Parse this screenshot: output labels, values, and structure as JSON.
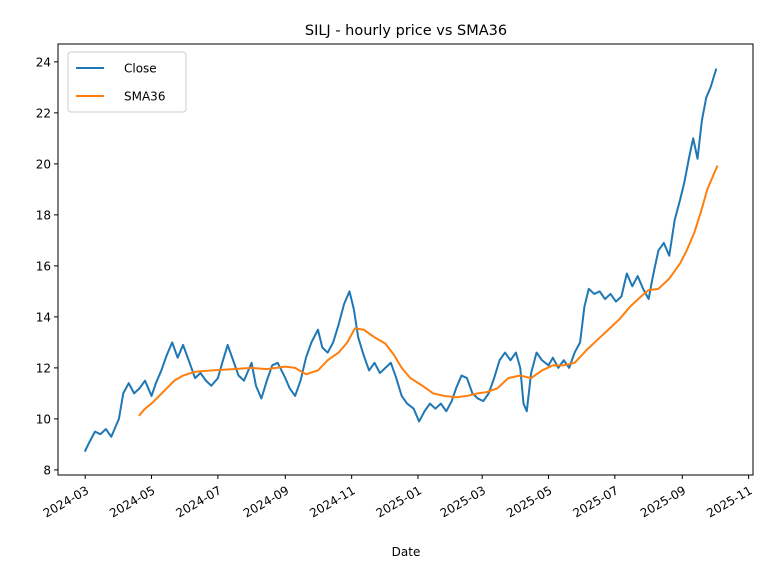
{
  "chart_data": {
    "type": "line",
    "title": "SILJ - hourly price vs SMA36",
    "xlabel": "Date",
    "ylabel": "",
    "xlim": [
      "2024-02-05",
      "2025-11-05"
    ],
    "ylim": [
      7.8,
      24.7
    ],
    "grid": false,
    "legend_position": "upper left",
    "x_ticks": [
      "2024-03",
      "2024-05",
      "2024-07",
      "2024-09",
      "2024-11",
      "2025-01",
      "2025-03",
      "2025-05",
      "2025-07",
      "2025-09",
      "2025-11"
    ],
    "y_ticks": [
      8,
      10,
      12,
      14,
      16,
      18,
      20,
      22,
      24
    ],
    "series": [
      {
        "name": "Close",
        "color": "#1f77b4",
        "points": [
          [
            "2024-03-01",
            8.75
          ],
          [
            "2024-03-05",
            9.1
          ],
          [
            "2024-03-10",
            9.5
          ],
          [
            "2024-03-15",
            9.4
          ],
          [
            "2024-03-20",
            9.6
          ],
          [
            "2024-03-25",
            9.3
          ],
          [
            "2024-04-01",
            10.0
          ],
          [
            "2024-04-05",
            11.0
          ],
          [
            "2024-04-10",
            11.4
          ],
          [
            "2024-04-15",
            11.0
          ],
          [
            "2024-04-20",
            11.2
          ],
          [
            "2024-04-25",
            11.5
          ],
          [
            "2024-05-01",
            10.9
          ],
          [
            "2024-05-05",
            11.4
          ],
          [
            "2024-05-10",
            11.9
          ],
          [
            "2024-05-15",
            12.5
          ],
          [
            "2024-05-20",
            13.0
          ],
          [
            "2024-05-25",
            12.4
          ],
          [
            "2024-05-30",
            12.9
          ],
          [
            "2024-06-05",
            12.2
          ],
          [
            "2024-06-10",
            11.6
          ],
          [
            "2024-06-15",
            11.8
          ],
          [
            "2024-06-20",
            11.5
          ],
          [
            "2024-06-25",
            11.3
          ],
          [
            "2024-07-01",
            11.6
          ],
          [
            "2024-07-05",
            12.2
          ],
          [
            "2024-07-10",
            12.9
          ],
          [
            "2024-07-15",
            12.3
          ],
          [
            "2024-07-20",
            11.7
          ],
          [
            "2024-07-25",
            11.5
          ],
          [
            "2024-08-01",
            12.2
          ],
          [
            "2024-08-05",
            11.3
          ],
          [
            "2024-08-10",
            10.8
          ],
          [
            "2024-08-15",
            11.5
          ],
          [
            "2024-08-20",
            12.1
          ],
          [
            "2024-08-25",
            12.2
          ],
          [
            "2024-09-01",
            11.6
          ],
          [
            "2024-09-05",
            11.2
          ],
          [
            "2024-09-10",
            10.9
          ],
          [
            "2024-09-15",
            11.5
          ],
          [
            "2024-09-20",
            12.4
          ],
          [
            "2024-09-25",
            13.0
          ],
          [
            "2024-10-01",
            13.5
          ],
          [
            "2024-10-05",
            12.8
          ],
          [
            "2024-10-10",
            12.6
          ],
          [
            "2024-10-15",
            13.0
          ],
          [
            "2024-10-20",
            13.7
          ],
          [
            "2024-10-25",
            14.5
          ],
          [
            "2024-10-30",
            15.0
          ],
          [
            "2024-11-03",
            14.3
          ],
          [
            "2024-11-07",
            13.2
          ],
          [
            "2024-11-12",
            12.5
          ],
          [
            "2024-11-17",
            11.9
          ],
          [
            "2024-11-22",
            12.2
          ],
          [
            "2024-11-27",
            11.8
          ],
          [
            "2024-12-02",
            12.0
          ],
          [
            "2024-12-07",
            12.2
          ],
          [
            "2024-12-12",
            11.6
          ],
          [
            "2024-12-17",
            10.9
          ],
          [
            "2024-12-22",
            10.6
          ],
          [
            "2024-12-28",
            10.4
          ],
          [
            "2025-01-02",
            9.9
          ],
          [
            "2025-01-07",
            10.3
          ],
          [
            "2025-01-12",
            10.6
          ],
          [
            "2025-01-17",
            10.4
          ],
          [
            "2025-01-22",
            10.6
          ],
          [
            "2025-01-27",
            10.3
          ],
          [
            "2025-02-01",
            10.7
          ],
          [
            "2025-02-05",
            11.2
          ],
          [
            "2025-02-10",
            11.7
          ],
          [
            "2025-02-15",
            11.6
          ],
          [
            "2025-02-20",
            11.0
          ],
          [
            "2025-02-25",
            10.8
          ],
          [
            "2025-03-02",
            10.7
          ],
          [
            "2025-03-07",
            11.0
          ],
          [
            "2025-03-12",
            11.6
          ],
          [
            "2025-03-17",
            12.3
          ],
          [
            "2025-03-22",
            12.6
          ],
          [
            "2025-03-27",
            12.3
          ],
          [
            "2025-04-01",
            12.6
          ],
          [
            "2025-04-05",
            12.0
          ],
          [
            "2025-04-08",
            10.6
          ],
          [
            "2025-04-11",
            10.3
          ],
          [
            "2025-04-15",
            11.8
          ],
          [
            "2025-04-20",
            12.6
          ],
          [
            "2025-04-25",
            12.3
          ],
          [
            "2025-05-01",
            12.1
          ],
          [
            "2025-05-05",
            12.4
          ],
          [
            "2025-05-10",
            12.0
          ],
          [
            "2025-05-15",
            12.3
          ],
          [
            "2025-05-20",
            12.0
          ],
          [
            "2025-05-25",
            12.6
          ],
          [
            "2025-05-30",
            13.0
          ],
          [
            "2025-06-03",
            14.4
          ],
          [
            "2025-06-07",
            15.1
          ],
          [
            "2025-06-12",
            14.9
          ],
          [
            "2025-06-17",
            15.0
          ],
          [
            "2025-06-22",
            14.7
          ],
          [
            "2025-06-27",
            14.9
          ],
          [
            "2025-07-02",
            14.6
          ],
          [
            "2025-07-07",
            14.8
          ],
          [
            "2025-07-12",
            15.7
          ],
          [
            "2025-07-17",
            15.2
          ],
          [
            "2025-07-22",
            15.6
          ],
          [
            "2025-07-27",
            15.1
          ],
          [
            "2025-08-01",
            14.7
          ],
          [
            "2025-08-05",
            15.6
          ],
          [
            "2025-08-10",
            16.6
          ],
          [
            "2025-08-15",
            16.9
          ],
          [
            "2025-08-20",
            16.4
          ],
          [
            "2025-08-25",
            17.8
          ],
          [
            "2025-08-30",
            18.6
          ],
          [
            "2025-09-03",
            19.3
          ],
          [
            "2025-09-07",
            20.2
          ],
          [
            "2025-09-11",
            21.0
          ],
          [
            "2025-09-15",
            20.2
          ],
          [
            "2025-09-19",
            21.7
          ],
          [
            "2025-09-23",
            22.6
          ],
          [
            "2025-09-27",
            23.0
          ],
          [
            "2025-10-02",
            23.7
          ]
        ]
      },
      {
        "name": "SMA36",
        "color": "#ff7f0e",
        "points": [
          [
            "2024-04-20",
            10.15
          ],
          [
            "2024-04-25",
            10.4
          ],
          [
            "2024-05-01",
            10.6
          ],
          [
            "2024-05-08",
            10.9
          ],
          [
            "2024-05-15",
            11.2
          ],
          [
            "2024-05-22",
            11.5
          ],
          [
            "2024-05-30",
            11.7
          ],
          [
            "2024-06-10",
            11.85
          ],
          [
            "2024-06-25",
            11.9
          ],
          [
            "2024-07-15",
            11.95
          ],
          [
            "2024-08-01",
            12.0
          ],
          [
            "2024-08-15",
            11.95
          ],
          [
            "2024-09-01",
            12.05
          ],
          [
            "2024-09-10",
            12.0
          ],
          [
            "2024-09-20",
            11.75
          ],
          [
            "2024-10-01",
            11.9
          ],
          [
            "2024-10-10",
            12.3
          ],
          [
            "2024-10-20",
            12.6
          ],
          [
            "2024-10-28",
            13.0
          ],
          [
            "2024-11-04",
            13.55
          ],
          [
            "2024-11-12",
            13.5
          ],
          [
            "2024-11-22",
            13.2
          ],
          [
            "2024-12-02",
            12.95
          ],
          [
            "2024-12-10",
            12.5
          ],
          [
            "2024-12-17",
            12.0
          ],
          [
            "2024-12-25",
            11.6
          ],
          [
            "2025-01-05",
            11.3
          ],
          [
            "2025-01-15",
            11.0
          ],
          [
            "2025-01-25",
            10.9
          ],
          [
            "2025-02-05",
            10.85
          ],
          [
            "2025-02-15",
            10.9
          ],
          [
            "2025-02-25",
            11.0
          ],
          [
            "2025-03-05",
            11.05
          ],
          [
            "2025-03-15",
            11.2
          ],
          [
            "2025-03-25",
            11.6
          ],
          [
            "2025-04-05",
            11.7
          ],
          [
            "2025-04-15",
            11.6
          ],
          [
            "2025-04-25",
            11.9
          ],
          [
            "2025-05-05",
            12.1
          ],
          [
            "2025-05-15",
            12.1
          ],
          [
            "2025-05-25",
            12.2
          ],
          [
            "2025-06-05",
            12.7
          ],
          [
            "2025-06-15",
            13.1
          ],
          [
            "2025-06-25",
            13.5
          ],
          [
            "2025-07-05",
            13.9
          ],
          [
            "2025-07-15",
            14.4
          ],
          [
            "2025-07-25",
            14.8
          ],
          [
            "2025-08-01",
            15.05
          ],
          [
            "2025-08-10",
            15.1
          ],
          [
            "2025-08-20",
            15.5
          ],
          [
            "2025-08-30",
            16.1
          ],
          [
            "2025-09-05",
            16.6
          ],
          [
            "2025-09-12",
            17.3
          ],
          [
            "2025-09-18",
            18.1
          ],
          [
            "2025-09-24",
            19.0
          ],
          [
            "2025-09-30",
            19.6
          ],
          [
            "2025-10-03",
            19.9
          ]
        ]
      }
    ]
  }
}
